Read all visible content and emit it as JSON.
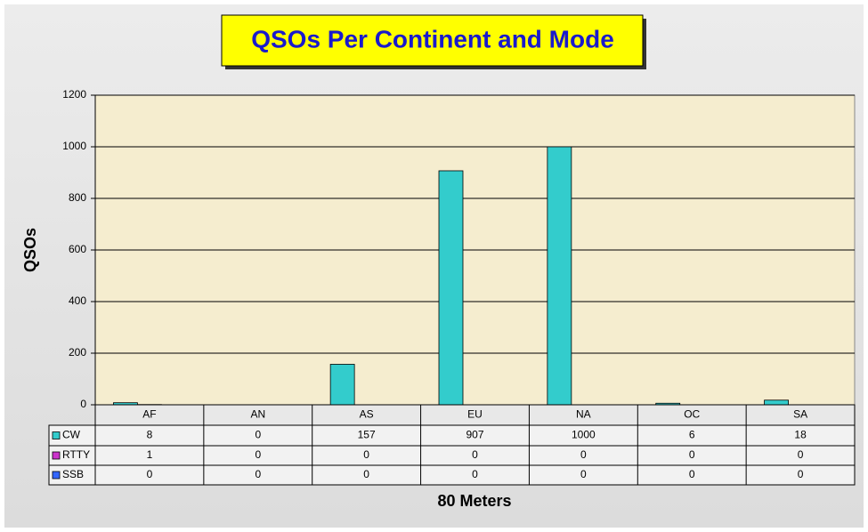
{
  "chart_data": {
    "type": "bar",
    "title": "QSOs Per Continent and Mode",
    "x_label": "80 Meters",
    "y_label": "QSOs",
    "categories": [
      "AF",
      "AN",
      "AS",
      "EU",
      "NA",
      "OC",
      "SA"
    ],
    "series": [
      {
        "name": "CW",
        "color": "#33cccc",
        "values": [
          8,
          0,
          157,
          907,
          1000,
          6,
          18
        ]
      },
      {
        "name": "RTTY",
        "color": "#cc33cc",
        "values": [
          1,
          0,
          0,
          0,
          0,
          0,
          0
        ]
      },
      {
        "name": "SSB",
        "color": "#3366ff",
        "values": [
          0,
          0,
          0,
          0,
          0,
          0,
          0
        ]
      }
    ],
    "ylim": [
      0,
      1200
    ],
    "yticks": [
      0,
      200,
      400,
      600,
      800,
      1000,
      1200
    ],
    "grid": true
  }
}
